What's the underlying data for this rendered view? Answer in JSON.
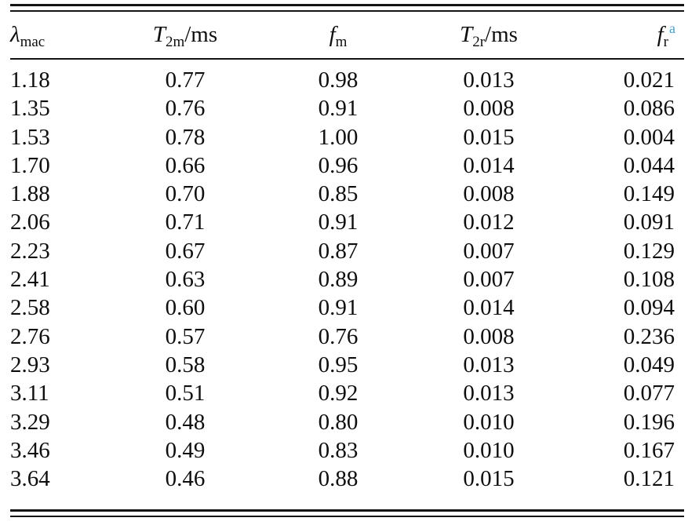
{
  "table": {
    "footnote_marker_color": "#3fa2da",
    "rule_color": "#131313",
    "columns": [
      {
        "base": "λ",
        "sub": "mac",
        "suffix": "",
        "sup": ""
      },
      {
        "base": "T",
        "sub": "2m",
        "suffix": "/ms",
        "sup": ""
      },
      {
        "base": "f",
        "sub": "m",
        "suffix": "",
        "sup": ""
      },
      {
        "base": "T",
        "sub": "2r",
        "suffix": "/ms",
        "sup": ""
      },
      {
        "base": "f",
        "sub": "r",
        "suffix": "",
        "sup": "a"
      }
    ],
    "column_keys": [
      "lambda-mac",
      "t2m-ms",
      "f-m",
      "t2r-ms",
      "f-r"
    ],
    "column_align": [
      "al",
      "ac",
      "ac",
      "ac",
      "ar"
    ],
    "rows": [
      [
        "1.18",
        "0.77",
        "0.98",
        "0.013",
        "0.021"
      ],
      [
        "1.35",
        "0.76",
        "0.91",
        "0.008",
        "0.086"
      ],
      [
        "1.53",
        "0.78",
        "1.00",
        "0.015",
        "0.004"
      ],
      [
        "1.70",
        "0.66",
        "0.96",
        "0.014",
        "0.044"
      ],
      [
        "1.88",
        "0.70",
        "0.85",
        "0.008",
        "0.149"
      ],
      [
        "2.06",
        "0.71",
        "0.91",
        "0.012",
        "0.091"
      ],
      [
        "2.23",
        "0.67",
        "0.87",
        "0.007",
        "0.129"
      ],
      [
        "2.41",
        "0.63",
        "0.89",
        "0.007",
        "0.108"
      ],
      [
        "2.58",
        "0.60",
        "0.91",
        "0.014",
        "0.094"
      ],
      [
        "2.76",
        "0.57",
        "0.76",
        "0.008",
        "0.236"
      ],
      [
        "2.93",
        "0.58",
        "0.95",
        "0.013",
        "0.049"
      ],
      [
        "3.11",
        "0.51",
        "0.92",
        "0.013",
        "0.077"
      ],
      [
        "3.29",
        "0.48",
        "0.80",
        "0.010",
        "0.196"
      ],
      [
        "3.46",
        "0.49",
        "0.83",
        "0.010",
        "0.167"
      ],
      [
        "3.64",
        "0.46",
        "0.88",
        "0.015",
        "0.121"
      ]
    ]
  }
}
